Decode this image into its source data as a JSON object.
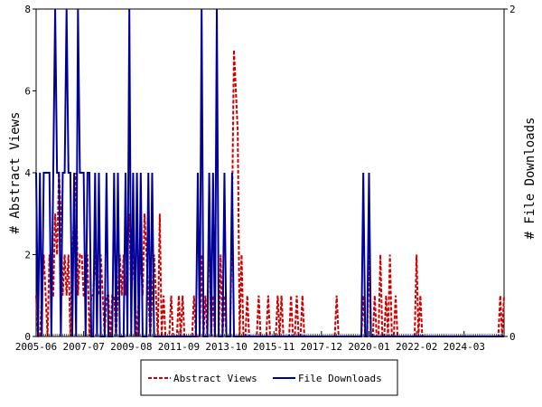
{
  "chart_data": {
    "type": "line",
    "ylabel": "# Abstract Views",
    "y2label": "# File Downloads",
    "ylim": [
      0,
      8
    ],
    "y2lim": [
      0,
      2
    ],
    "yticks": [
      "0",
      "2",
      "4",
      "6",
      "8"
    ],
    "y2ticks": [
      "0",
      "2"
    ],
    "xticks": [
      "2005-06",
      "2007-07",
      "2009-08",
      "2011-09",
      "2013-10",
      "2015-11",
      "2017-12",
      "2020-01",
      "2022-02",
      "2024-03"
    ],
    "xrange": [
      "2005-06",
      "2025-12"
    ],
    "legend_position": "bottom-center",
    "grid": false,
    "series": [
      {
        "name": "Abstract Views",
        "axis": "left",
        "color": "#cc0000",
        "style": "dashed",
        "x": [
          "2005-06",
          "2005-08",
          "2005-09",
          "2005-10",
          "2005-11",
          "2005-12",
          "2006-01",
          "2006-02",
          "2006-03",
          "2006-04",
          "2006-05",
          "2006-06",
          "2006-07",
          "2006-08",
          "2006-09",
          "2006-10",
          "2006-11",
          "2006-12",
          "2007-01",
          "2007-02",
          "2007-03",
          "2007-04",
          "2007-05",
          "2007-06",
          "2007-07",
          "2007-08",
          "2007-09",
          "2007-10",
          "2007-11",
          "2007-12",
          "2008-01",
          "2008-02",
          "2008-03",
          "2008-04",
          "2008-05",
          "2008-06",
          "2008-07",
          "2008-08",
          "2008-09",
          "2008-10",
          "2008-11",
          "2008-12",
          "2009-01",
          "2009-02",
          "2009-03",
          "2009-04",
          "2009-05",
          "2009-06",
          "2009-07",
          "2009-08",
          "2009-09",
          "2009-10",
          "2009-11",
          "2009-12",
          "2010-01",
          "2010-02",
          "2010-03",
          "2010-04",
          "2010-05",
          "2010-06",
          "2010-07",
          "2010-08",
          "2010-09",
          "2010-10",
          "2010-11",
          "2010-12",
          "2011-01",
          "2011-03",
          "2011-05",
          "2011-07",
          "2011-09",
          "2011-11",
          "2012-02",
          "2012-05",
          "2012-07",
          "2012-09",
          "2012-11",
          "2013-01",
          "2013-03",
          "2013-05",
          "2013-07",
          "2013-09",
          "2013-11",
          "2014-01",
          "2014-02",
          "2014-03",
          "2014-04",
          "2014-06",
          "2014-09",
          "2015-03",
          "2015-08",
          "2016-01",
          "2016-03",
          "2016-05",
          "2016-08",
          "2016-11",
          "2017-02",
          "2018-08",
          "2019-10",
          "2020-01",
          "2020-04",
          "2020-07",
          "2020-10",
          "2020-12",
          "2021-03",
          "2022-02",
          "2022-04",
          "2025-10",
          "2025-12"
        ],
        "values": [
          1,
          0,
          1,
          2,
          1,
          0,
          2,
          1,
          1,
          3,
          2,
          4,
          3,
          1,
          2,
          1,
          2,
          0,
          2,
          3,
          4,
          1,
          2,
          2,
          1,
          1,
          2,
          0,
          1,
          1,
          2,
          1,
          1,
          2,
          1,
          0,
          1,
          1,
          0,
          1,
          1,
          0,
          1,
          2,
          1,
          2,
          1,
          2,
          3,
          1,
          2,
          1,
          0,
          1,
          2,
          1,
          3,
          2,
          1,
          0,
          1,
          2,
          1,
          0,
          3,
          0,
          1,
          0,
          1,
          0,
          1,
          1,
          0,
          1,
          0,
          2,
          1,
          3,
          1,
          0,
          2,
          1,
          0,
          3,
          7,
          6,
          5,
          2,
          1,
          1,
          1,
          1,
          1,
          0,
          1,
          1,
          1,
          1,
          1,
          2,
          1,
          2,
          1,
          2,
          1,
          2,
          1,
          1,
          1
        ],
        "note": "approximate monthly counts"
      },
      {
        "name": "File Downloads",
        "axis": "right",
        "color": "#000099",
        "style": "solid",
        "x": [
          "2005-06",
          "2005-07",
          "2005-08",
          "2005-09",
          "2005-10",
          "2005-11",
          "2005-12",
          "2006-01",
          "2006-02",
          "2006-03",
          "2006-04",
          "2006-05",
          "2006-06",
          "2006-07",
          "2006-08",
          "2006-09",
          "2006-10",
          "2006-11",
          "2006-12",
          "2007-01",
          "2007-02",
          "2007-03",
          "2007-04",
          "2007-05",
          "2007-06",
          "2007-07",
          "2007-08",
          "2007-09",
          "2007-10",
          "2007-11",
          "2008-01",
          "2008-03",
          "2008-05",
          "2008-07",
          "2008-09",
          "2008-11",
          "2009-01",
          "2009-03",
          "2009-05",
          "2009-07",
          "2009-09",
          "2009-11",
          "2010-01",
          "2010-03",
          "2010-05",
          "2010-07",
          "2010-09",
          "2012-07",
          "2012-09",
          "2012-11",
          "2013-01",
          "2013-03",
          "2013-05",
          "2013-09",
          "2013-11",
          "2014-01",
          "2019-10",
          "2020-01",
          "2020-06"
        ],
        "values": [
          1,
          0,
          1,
          0,
          1,
          1,
          1,
          1,
          0,
          1,
          2,
          1,
          1,
          0,
          1,
          1,
          2,
          1,
          1,
          0,
          1,
          0,
          2,
          1,
          1,
          1,
          0,
          1,
          1,
          0,
          1,
          1,
          0,
          1,
          0,
          1,
          1,
          0,
          1,
          2,
          1,
          1,
          1,
          0,
          1,
          1,
          0,
          1,
          2,
          0,
          1,
          1,
          2,
          1,
          0,
          1,
          1,
          1,
          0
        ],
        "note": "approximate monthly counts"
      }
    ]
  }
}
